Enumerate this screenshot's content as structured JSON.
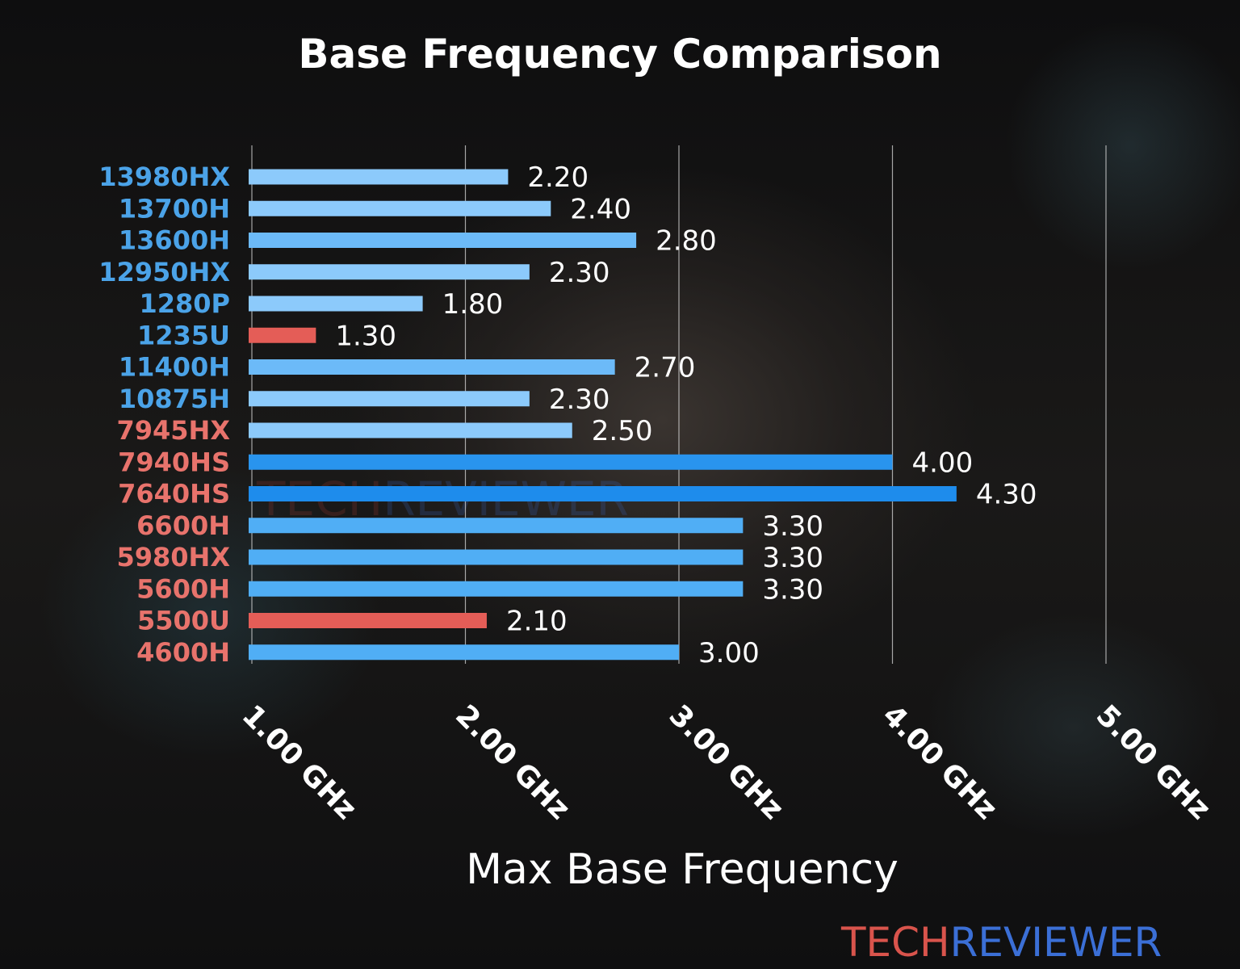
{
  "chart_data": {
    "type": "bar",
    "orientation": "horizontal",
    "title": "Base Frequency Comparison",
    "xlabel": "Max Base Frequency",
    "ylabel": "",
    "xlim": [
      1.0,
      5.0
    ],
    "xticks": [
      {
        "value": 1.0,
        "label": "1.00 GHz"
      },
      {
        "value": 2.0,
        "label": "2.00 GHz"
      },
      {
        "value": 3.0,
        "label": "3.00 GHz"
      },
      {
        "value": 4.0,
        "label": "4.00 GHz"
      },
      {
        "value": 5.0,
        "label": "5.00 GHz"
      }
    ],
    "grid": "vertical",
    "categories": [
      "13980HX",
      "13700H",
      "13600H",
      "12950HX",
      "1280P",
      "1235U",
      "11400H",
      "10875H",
      "7945HX",
      "7940HS",
      "7640HS",
      "6600H",
      "5980HX",
      "5600H",
      "5500U",
      "4600H"
    ],
    "values": [
      2.2,
      2.4,
      2.8,
      2.3,
      1.8,
      1.3,
      2.7,
      2.3,
      2.5,
      4.0,
      4.3,
      3.3,
      3.3,
      3.3,
      2.1,
      3.0
    ],
    "value_labels": [
      "2.20",
      "2.40",
      "2.80",
      "2.30",
      "1.80",
      "1.30",
      "2.70",
      "2.30",
      "2.50",
      "4.00",
      "4.30",
      "3.30",
      "3.30",
      "3.30",
      "2.10",
      "3.00"
    ],
    "category_colors": [
      "#4ba3e8",
      "#4ba3e8",
      "#4ba3e8",
      "#4ba3e8",
      "#4ba3e8",
      "#4ba3e8",
      "#4ba3e8",
      "#4ba3e8",
      "#e8736c",
      "#e8736c",
      "#e8736c",
      "#e8736c",
      "#e8736c",
      "#e8736c",
      "#e8736c",
      "#e8736c"
    ],
    "bar_colors": [
      "#8ccafb",
      "#8ccafb",
      "#6cbaf8",
      "#8ccafb",
      "#8ccafb",
      "#e45d57",
      "#6cbaf8",
      "#8ccafb",
      "#8ccafb",
      "#2994ee",
      "#1e8cec",
      "#50aef5",
      "#50aef5",
      "#50aef5",
      "#e45d57",
      "#50aef5"
    ]
  },
  "watermark": {
    "part1": "TECH",
    "part2": "REVIEWER"
  },
  "logo": {
    "part1": "TECH",
    "part2": "REVIEWER"
  }
}
